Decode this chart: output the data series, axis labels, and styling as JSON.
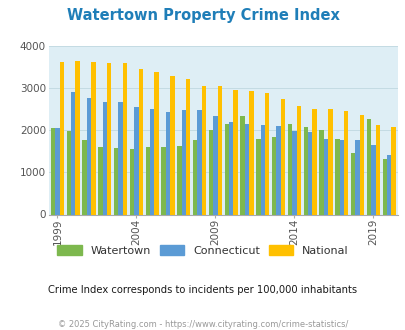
{
  "title": "Watertown Property Crime Index",
  "years": [
    1999,
    2000,
    2001,
    2002,
    2003,
    2004,
    2005,
    2006,
    2007,
    2008,
    2009,
    2010,
    2011,
    2012,
    2013,
    2014,
    2015,
    2016,
    2017,
    2018,
    2019,
    2020
  ],
  "watertown": [
    2050,
    1990,
    1760,
    1600,
    1570,
    1550,
    1600,
    1600,
    1620,
    1780,
    2020,
    2150,
    2350,
    1800,
    1850,
    2150,
    2070,
    2020,
    1800,
    1460,
    2260,
    1320
  ],
  "connecticut": [
    2060,
    2920,
    2770,
    2680,
    2670,
    2560,
    2500,
    2430,
    2480,
    2490,
    2350,
    2200,
    2150,
    2120,
    2100,
    1990,
    1950,
    1800,
    1780,
    1780,
    1650,
    1410
  ],
  "national": [
    3620,
    3660,
    3620,
    3600,
    3590,
    3450,
    3380,
    3290,
    3230,
    3060,
    3050,
    2960,
    2930,
    2890,
    2750,
    2590,
    2510,
    2500,
    2460,
    2360,
    2120,
    2080
  ],
  "watertown_color": "#7db84e",
  "connecticut_color": "#5b9bd5",
  "national_color": "#ffc000",
  "bg_color": "#deeef5",
  "title_color": "#1f7eb8",
  "subtitle": "Crime Index corresponds to incidents per 100,000 inhabitants",
  "footer": "© 2025 CityRating.com - https://www.cityrating.com/crime-statistics/",
  "ylim": [
    0,
    4000
  ],
  "yticks": [
    0,
    1000,
    2000,
    3000,
    4000
  ],
  "xtick_years": [
    1999,
    2004,
    2009,
    2014,
    2019
  ],
  "bar_width": 0.28,
  "legend_labels": [
    "Watertown",
    "Connecticut",
    "National"
  ],
  "subtitle_color": "#1a1a1a",
  "footer_color": "#999999",
  "grid_color": "#c0d8e0"
}
